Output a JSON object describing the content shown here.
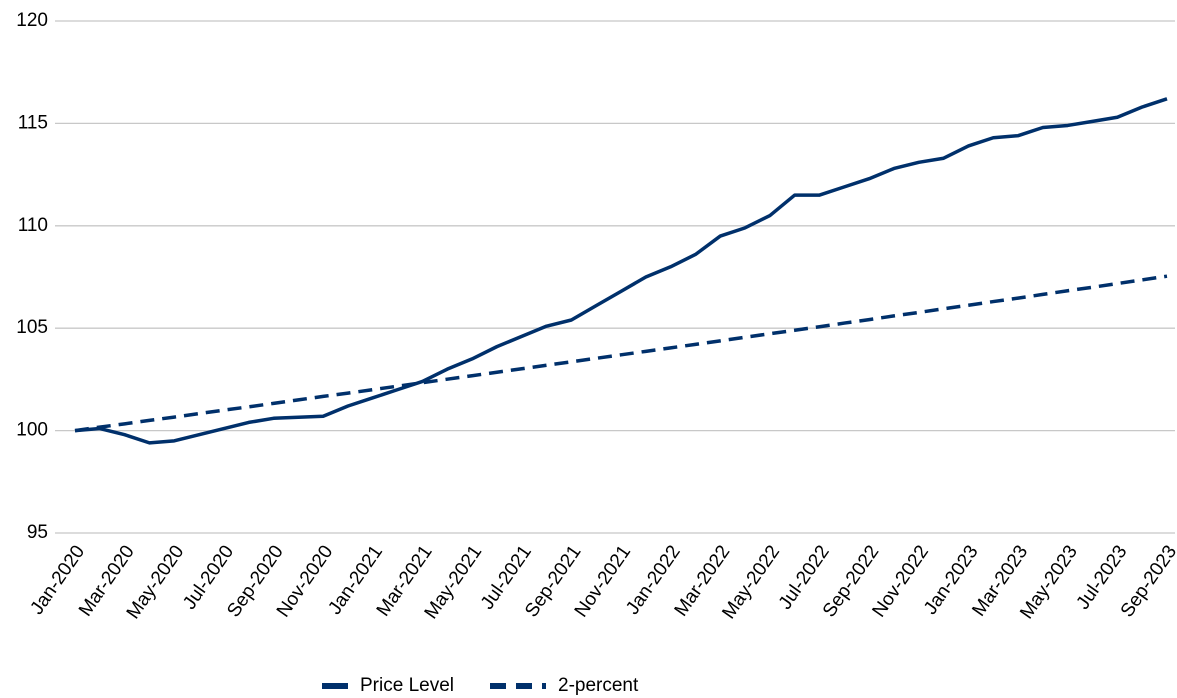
{
  "chart_data": {
    "type": "line",
    "categories": [
      "Jan-2020",
      null,
      "Mar-2020",
      null,
      "May-2020",
      null,
      "Jul-2020",
      null,
      "Sep-2020",
      null,
      "Nov-2020",
      null,
      "Jan-2021",
      null,
      "Mar-2021",
      null,
      "May-2021",
      null,
      "Jul-2021",
      null,
      "Sep-2021",
      null,
      "Nov-2021",
      null,
      "Jan-2022",
      null,
      "Mar-2022",
      null,
      "May-2022",
      null,
      "Jul-2022",
      null,
      "Sep-2022",
      null,
      "Nov-2022",
      null,
      "Jan-2023",
      null,
      "Mar-2023",
      null,
      "May-2023",
      null,
      "Jul-2023",
      null,
      "Sep-2023"
    ],
    "series": [
      {
        "name": "Price Level",
        "color": "#00306b",
        "dashed": false,
        "values": [
          100,
          100.1,
          99.8,
          99.4,
          99.5,
          99.8,
          100.1,
          100.4,
          100.6,
          100.65,
          100.7,
          101.2,
          101.6,
          102.0,
          102.4,
          103.0,
          103.5,
          104.1,
          104.6,
          105.1,
          105.4,
          106.1,
          106.8,
          107.5,
          108.0,
          108.6,
          109.5,
          109.9,
          110.5,
          111.5,
          111.5,
          111.9,
          112.3,
          112.8,
          113.1,
          113.3,
          113.9,
          114.3,
          114.4,
          114.8,
          114.9,
          115.1,
          115.3,
          115.8,
          116.2
        ]
      },
      {
        "name": "2-percent",
        "color": "#00306b",
        "dashed": true,
        "values": [
          100,
          100.17,
          100.33,
          100.5,
          100.66,
          100.83,
          101.0,
          101.16,
          101.33,
          101.5,
          101.67,
          101.83,
          102.0,
          102.17,
          102.34,
          102.51,
          102.68,
          102.85,
          103.02,
          103.19,
          103.36,
          103.53,
          103.7,
          103.87,
          104.04,
          104.21,
          104.38,
          104.56,
          104.73,
          104.9,
          105.07,
          105.25,
          105.42,
          105.6,
          105.77,
          105.95,
          106.12,
          106.3,
          106.47,
          106.65,
          106.83,
          107.0,
          107.18,
          107.36,
          107.54
        ]
      }
    ],
    "ylim": [
      95,
      120
    ],
    "yticks": [
      95,
      100,
      105,
      110,
      115,
      120
    ],
    "grid": true,
    "legend": "bottom"
  }
}
